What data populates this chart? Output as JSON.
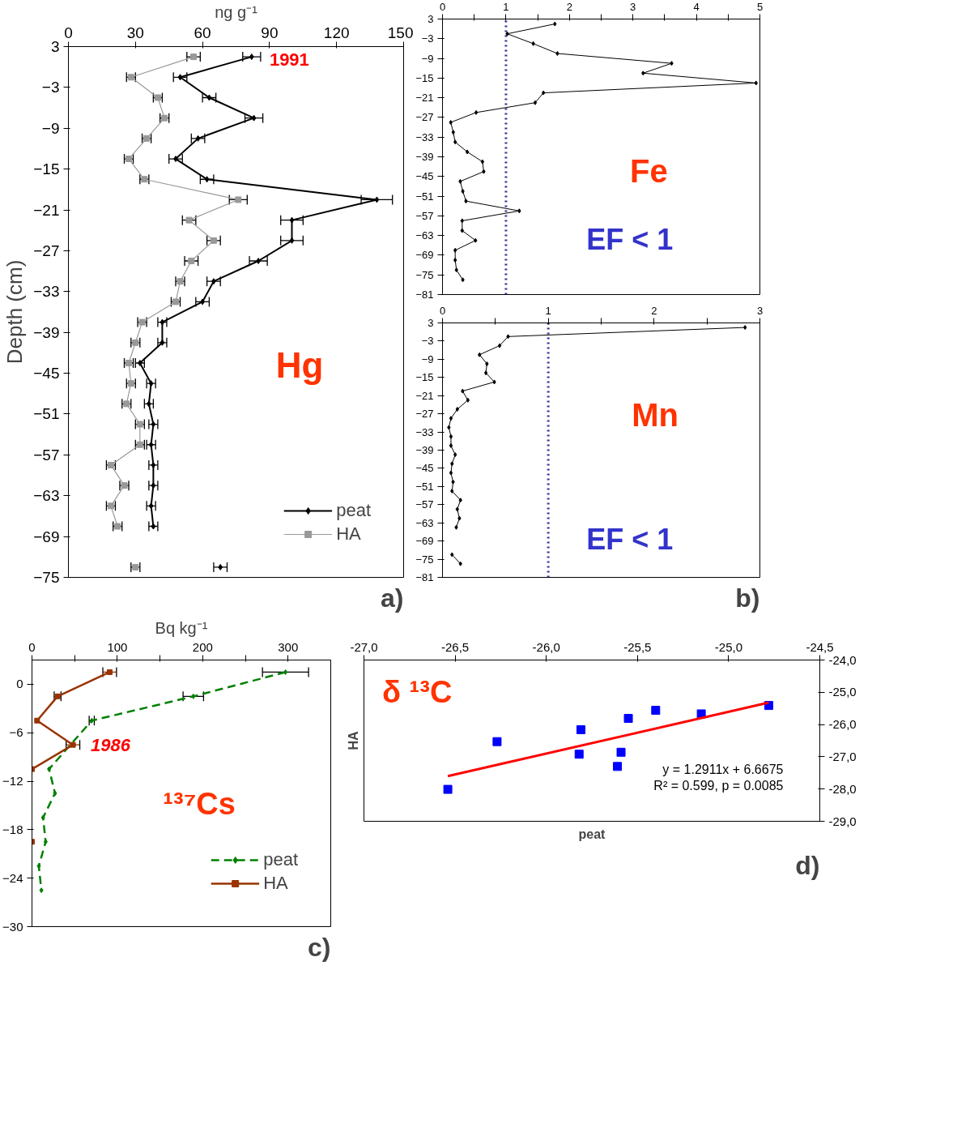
{
  "chart_data": [
    {
      "type": "line",
      "xlabel": "ng g⁻¹",
      "ylabel": "Depth (cm)",
      "xlim": [
        0,
        150
      ],
      "ylim": [
        -75,
        3
      ],
      "xticks": [
        0,
        30,
        60,
        90,
        120,
        150
      ],
      "yticks": [
        3,
        -3,
        -9,
        -15,
        -21,
        -27,
        -33,
        -39,
        -45,
        -51,
        -57,
        -63,
        -69,
        -75
      ],
      "legend": "bottom right",
      "series": [
        {
          "name": "peat",
          "color": "#000000",
          "marker": "diamond",
          "x": [
            82,
            50,
            63,
            83,
            58,
            48,
            62,
            138,
            100,
            100,
            85,
            65,
            60,
            42,
            42,
            32,
            37,
            36,
            38,
            37,
            38,
            38,
            37,
            38,
            null,
            68
          ],
          "values": [
            1.5,
            -1.5,
            -4.5,
            -7.5,
            -10.5,
            -13.5,
            -16.5,
            -19.5,
            -22.5,
            -25.5,
            -28.5,
            -31.5,
            -34.5,
            -37.5,
            -40.5,
            -43.5,
            -46.5,
            -49.5,
            -52.5,
            -55.5,
            -58.5,
            -61.5,
            -64.5,
            -67.5,
            null,
            -73.5
          ],
          "xerrors": [
            4,
            3,
            3,
            4,
            3,
            3,
            3,
            7,
            5,
            5,
            4,
            3,
            3,
            2,
            2,
            2,
            2,
            2,
            2,
            2,
            2,
            2,
            2,
            2,
            null,
            3
          ]
        },
        {
          "name": "HA",
          "color": "#999999",
          "marker": "square",
          "x": [
            56,
            28,
            40,
            43,
            35,
            27,
            34,
            76,
            54,
            65,
            55,
            50,
            48,
            33,
            30,
            27,
            28,
            26,
            32,
            32,
            19,
            25,
            19,
            22,
            null,
            30
          ],
          "values": [
            1.5,
            -1.5,
            -4.5,
            -7.5,
            -10.5,
            -13.5,
            -16.5,
            -19.5,
            -22.5,
            -25.5,
            -28.5,
            -31.5,
            -34.5,
            -37.5,
            -40.5,
            -43.5,
            -46.5,
            -49.5,
            -52.5,
            -55.5,
            -58.5,
            -61.5,
            -64.5,
            -67.5,
            null,
            -73.5
          ],
          "xerrors": [
            3,
            2,
            2,
            2,
            2,
            2,
            2,
            4,
            3,
            3,
            3,
            2,
            2,
            2,
            2,
            2,
            2,
            2,
            2,
            2,
            2,
            2,
            2,
            2,
            null,
            2
          ]
        }
      ],
      "annotations": [
        "1991",
        "Hg",
        "a)"
      ]
    },
    {
      "type": "line",
      "xlim": [
        0,
        5
      ],
      "ylim": [
        -81,
        3
      ],
      "marker": "diamond",
      "xticks": [
        0,
        {
          "value": 0.5,
          "label": null
        },
        1,
        {
          "value": 1.5,
          "label": null
        },
        2,
        {
          "value": 2.5,
          "label": null
        },
        3,
        {
          "value": 3.5,
          "label": null
        },
        4,
        {
          "value": 4.5,
          "label": null
        },
        5
      ],
      "yticks": [
        3,
        -3,
        -9,
        -15,
        -21,
        -27,
        -33,
        -39,
        -45,
        -51,
        -57,
        -63,
        -69,
        -75,
        -81
      ],
      "series": [
        {
          "color": "#000000",
          "x": [
            1.77,
            1.02,
            1.43,
            1.81,
            3.61,
            3.16,
            4.94,
            1.59,
            1.46,
            0.53,
            0.13,
            0.17,
            0.2,
            0.39,
            0.63,
            0.65,
            0.28,
            0.32,
            0.37,
            1.21,
            0.31,
            0.31,
            0.52,
            0.2,
            0.2,
            0.22,
            0.32
          ],
          "values": [
            1.5,
            -1.5,
            -4.5,
            -7.5,
            -10.5,
            -13.5,
            -16.5,
            -19.5,
            -22.5,
            -25.5,
            -28.5,
            -31.5,
            -34.5,
            -37.5,
            -40.5,
            -43.5,
            -46.5,
            -49.5,
            -52.5,
            -55.5,
            -58.5,
            -61.5,
            -64.5,
            -67.5,
            -70.5,
            -73.5,
            -76.5
          ]
        }
      ],
      "ref_lines": [
        {
          "axis": "x",
          "value": 1,
          "color": "#333399",
          "line_style": "dotted"
        }
      ],
      "annotations": [
        "Fe",
        "EF < 1"
      ]
    },
    {
      "type": "line",
      "xlim": [
        0,
        3
      ],
      "ylim": [
        -81,
        3
      ],
      "marker": "diamond",
      "xticks": [
        0,
        {
          "value": 0.5,
          "label": null
        },
        1,
        {
          "value": 1.5,
          "label": null
        },
        2,
        {
          "value": 2.5,
          "label": null
        },
        3
      ],
      "yticks": [
        3,
        -3,
        -9,
        -15,
        -21,
        -27,
        -33,
        -39,
        -45,
        -51,
        -57,
        -63,
        -69,
        -75,
        -81
      ],
      "series": [
        {
          "color": "#000000",
          "x": [
            2.86,
            0.62,
            0.54,
            0.35,
            0.42,
            0.41,
            0.49,
            0.19,
            0.24,
            0.14,
            0.08,
            0.06,
            0.08,
            0.08,
            0.12,
            0.09,
            0.08,
            0.1,
            0.09,
            0.17,
            0.14,
            0.16,
            0.13,
            null,
            0.09,
            0.17
          ],
          "values": [
            1.5,
            -1.5,
            -4.5,
            -7.5,
            -10.5,
            -13.5,
            -16.5,
            -19.5,
            -22.5,
            -25.5,
            -28.5,
            -31.5,
            -34.5,
            -37.5,
            -40.5,
            -43.5,
            -46.5,
            -49.5,
            -52.5,
            -55.5,
            -58.5,
            -61.5,
            -64.5,
            null,
            -73.5,
            -76.5
          ]
        }
      ],
      "ref_lines": [
        {
          "axis": "x",
          "value": 1,
          "color": "#333399",
          "line_style": "dotted"
        }
      ],
      "annotations": [
        "Mn",
        "EF < 1",
        "b)"
      ]
    },
    {
      "type": "line",
      "xlabel": "Bq kg⁻¹",
      "xlim": [
        0,
        350
      ],
      "ylim": [
        -30,
        3
      ],
      "xticks": [
        0,
        {
          "value": 50,
          "label": null
        },
        100,
        {
          "value": 150,
          "label": null
        },
        200,
        {
          "value": 250,
          "label": null
        },
        300
      ],
      "yticks": [
        0,
        -6,
        -12,
        -18,
        -24,
        -30
      ],
      "legend": "bottom right",
      "series": [
        {
          "name": "peat",
          "color": "#008000",
          "marker": "diamond",
          "line_style": "dashed",
          "x": [
            297,
            189,
            70,
            20,
            27,
            13,
            16,
            8,
            11
          ],
          "values": [
            1.5,
            -1.5,
            -4.5,
            -10.5,
            -13.5,
            -16.5,
            -19.5,
            -22.5,
            -25.5
          ],
          "xerrors": [
            27,
            12,
            3,
            null,
            null,
            null,
            null,
            null,
            null
          ]
        },
        {
          "name": "HA",
          "color": "#993300",
          "marker": "square",
          "line_style": "solid",
          "x": [
            91,
            30,
            6,
            48,
            0,
            null,
            0
          ],
          "values": [
            1.5,
            -1.5,
            -4.5,
            -7.5,
            -10.5,
            null,
            -19.5
          ],
          "xerrors": [
            8,
            4,
            null,
            8,
            null,
            null,
            null
          ]
        }
      ],
      "annotations": [
        {
          "text": "1986",
          "x": 48,
          "y": -7.5
        },
        "¹³⁷Cs",
        "c)"
      ]
    },
    {
      "type": "scatter",
      "xlabel": "peat",
      "ylabel": "HA",
      "xlim": [
        -27,
        -24.5
      ],
      "ylim": [
        -29,
        -24
      ],
      "xticks": [
        {
          "value": -27,
          "label": "-27,0"
        },
        {
          "value": -26.5,
          "label": "-26,5"
        },
        {
          "value": -26,
          "label": "-26,0"
        },
        {
          "value": -25.5,
          "label": "-25,5"
        },
        {
          "value": -25,
          "label": "-25,0"
        },
        {
          "value": -24.5,
          "label": "-24,5"
        }
      ],
      "yticks": [
        {
          "value": -24,
          "label": "-24,0"
        },
        {
          "value": -25,
          "label": "-25,0"
        },
        {
          "value": -26,
          "label": "-26,0"
        },
        {
          "value": -27,
          "label": "-27,0"
        },
        {
          "value": -28,
          "label": "-28,0"
        },
        {
          "value": -29,
          "label": "-29,0"
        }
      ],
      "series": [
        {
          "color": "#0000ff",
          "marker": "square",
          "x": [
            -26.54,
            -26.27,
            -25.81,
            -25.82,
            -25.59,
            -25.61,
            -25.55,
            -25.4,
            -25.15,
            -24.78
          ],
          "values": [
            -28.01,
            -26.53,
            -26.16,
            -26.92,
            -26.86,
            -27.3,
            -25.81,
            -25.56,
            -25.67,
            -25.41
          ]
        },
        {
          "type": "line",
          "color": "#ff0000",
          "x": [
            -26.54,
            -24.78
          ],
          "values": [
            -27.6,
            -25.32
          ]
        }
      ],
      "annotations": [
        "δ ¹³C",
        "y = 1.2911x + 6.6675",
        "R² = 0.599, p = 0.0085",
        "d)"
      ]
    }
  ]
}
